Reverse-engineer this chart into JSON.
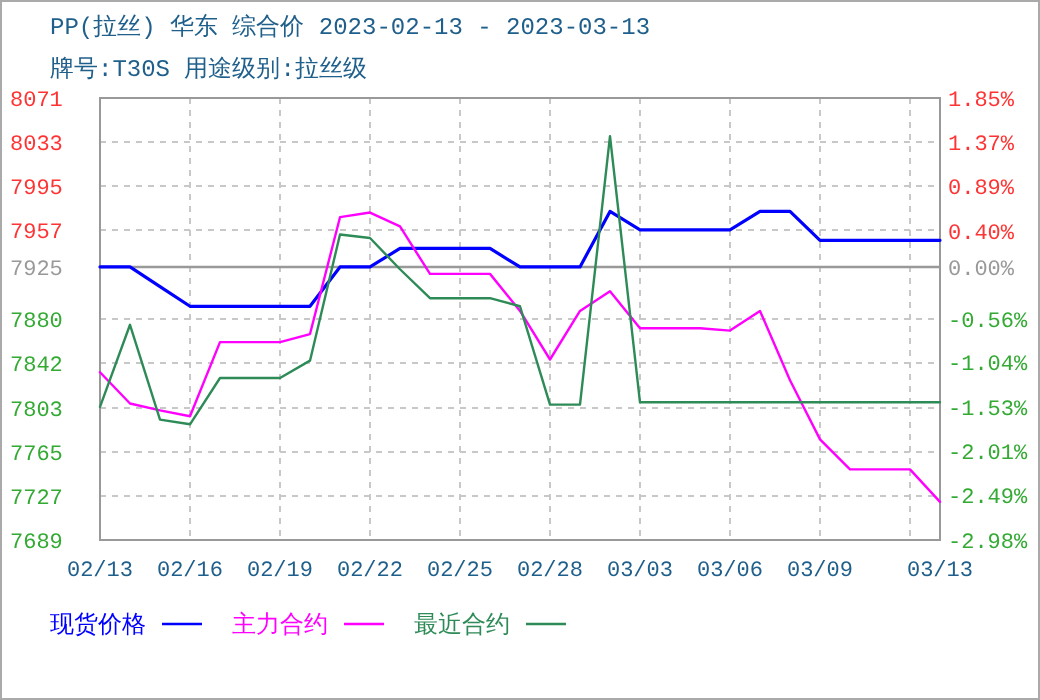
{
  "chart_data": {
    "type": "line",
    "title": "PP(拉丝) 华东 综合价 2023-02-13 - 2023-03-13",
    "subtitle": "牌号:T30S 用途级别:拉丝级",
    "x": [
      "2023-02-13",
      "2023-02-14",
      "2023-02-15",
      "2023-02-16",
      "2023-02-17",
      "2023-02-18",
      "2023-02-19",
      "2023-02-20",
      "2023-02-21",
      "2023-02-22",
      "2023-02-23",
      "2023-02-24",
      "2023-02-25",
      "2023-02-26",
      "2023-02-27",
      "2023-02-28",
      "2023-03-01",
      "2023-03-02",
      "2023-03-03",
      "2023-03-04",
      "2023-03-05",
      "2023-03-06",
      "2023-03-07",
      "2023-03-08",
      "2023-03-09",
      "2023-03-10",
      "2023-03-11",
      "2023-03-12",
      "2023-03-13"
    ],
    "series": [
      {
        "name": "现货价格",
        "color": "#0000ff",
        "values": [
          7925,
          7925,
          7908,
          7891,
          7891,
          7891,
          7891,
          7891,
          7925,
          7925,
          7941,
          7941,
          7941,
          7941,
          7925,
          7925,
          7925,
          7973,
          7957,
          7957,
          7957,
          7957,
          7973,
          7973,
          7948,
          7948,
          7948,
          7948,
          7948
        ]
      },
      {
        "name": "主力合约",
        "color": "#ff00ff",
        "values": [
          7834,
          7807,
          7801,
          7796,
          7860,
          7860,
          7860,
          7867,
          7968,
          7972,
          7960,
          7919,
          7919,
          7919,
          7887,
          7845,
          7887,
          7904,
          7872,
          7872,
          7872,
          7870,
          7887,
          7827,
          7776,
          7750,
          7750,
          7750,
          7722
        ]
      },
      {
        "name": "最近合约",
        "color": "#2e8b57",
        "values": [
          7804,
          7875,
          7793,
          7789,
          7829,
          7829,
          7829,
          7844,
          7953,
          7950,
          7923,
          7898,
          7898,
          7898,
          7891,
          7806,
          7806,
          8038,
          7808,
          7808,
          7808,
          7808,
          7808,
          7808,
          7808,
          7808,
          7808,
          7808,
          7808
        ]
      }
    ],
    "xlim": [
      "2023-02-13",
      "2023-03-13"
    ],
    "xticks": [
      {
        "value": "2023-02-13",
        "label": "02/13"
      },
      {
        "value": "2023-02-16",
        "label": "02/16"
      },
      {
        "value": "2023-02-19",
        "label": "02/19"
      },
      {
        "value": "2023-02-22",
        "label": "02/22"
      },
      {
        "value": "2023-02-25",
        "label": "02/25"
      },
      {
        "value": "2023-02-28",
        "label": "02/28"
      },
      {
        "value": "2023-03-03",
        "label": "03/03"
      },
      {
        "value": "2023-03-06",
        "label": "03/06"
      },
      {
        "value": "2023-03-09",
        "label": "03/09"
      },
      {
        "value": "2023-03-12",
        "label": null
      },
      {
        "value": "2023-03-13",
        "label": "03/13"
      }
    ],
    "ylim": [
      7689,
      8071
    ],
    "yticks": [
      7689,
      7727,
      7765,
      7803,
      7842,
      7880,
      7925,
      7957,
      7995,
      8033,
      8071
    ],
    "y2lim": [
      -2.98,
      1.85
    ],
    "y2ticks": [
      {
        "value": -2.98,
        "label": "-2.98%"
      },
      {
        "value": -2.49,
        "label": "-2.49%"
      },
      {
        "value": -2.01,
        "label": "-2.01%"
      },
      {
        "value": -1.53,
        "label": "-1.53%"
      },
      {
        "value": -1.04,
        "label": "-1.04%"
      },
      {
        "value": -0.56,
        "label": "-0.56%"
      },
      {
        "value": 0,
        "label": "0.00%"
      },
      {
        "value": 0.4,
        "label": "0.40%"
      },
      {
        "value": 0.89,
        "label": "0.89%"
      },
      {
        "value": 1.37,
        "label": "1.37%"
      },
      {
        "value": 1.85,
        "label": "1.85%"
      }
    ],
    "ref_lines": [
      {
        "axis": "y",
        "value": 7925,
        "color": "#999999"
      }
    ],
    "grid": true,
    "legend": "bottom"
  }
}
